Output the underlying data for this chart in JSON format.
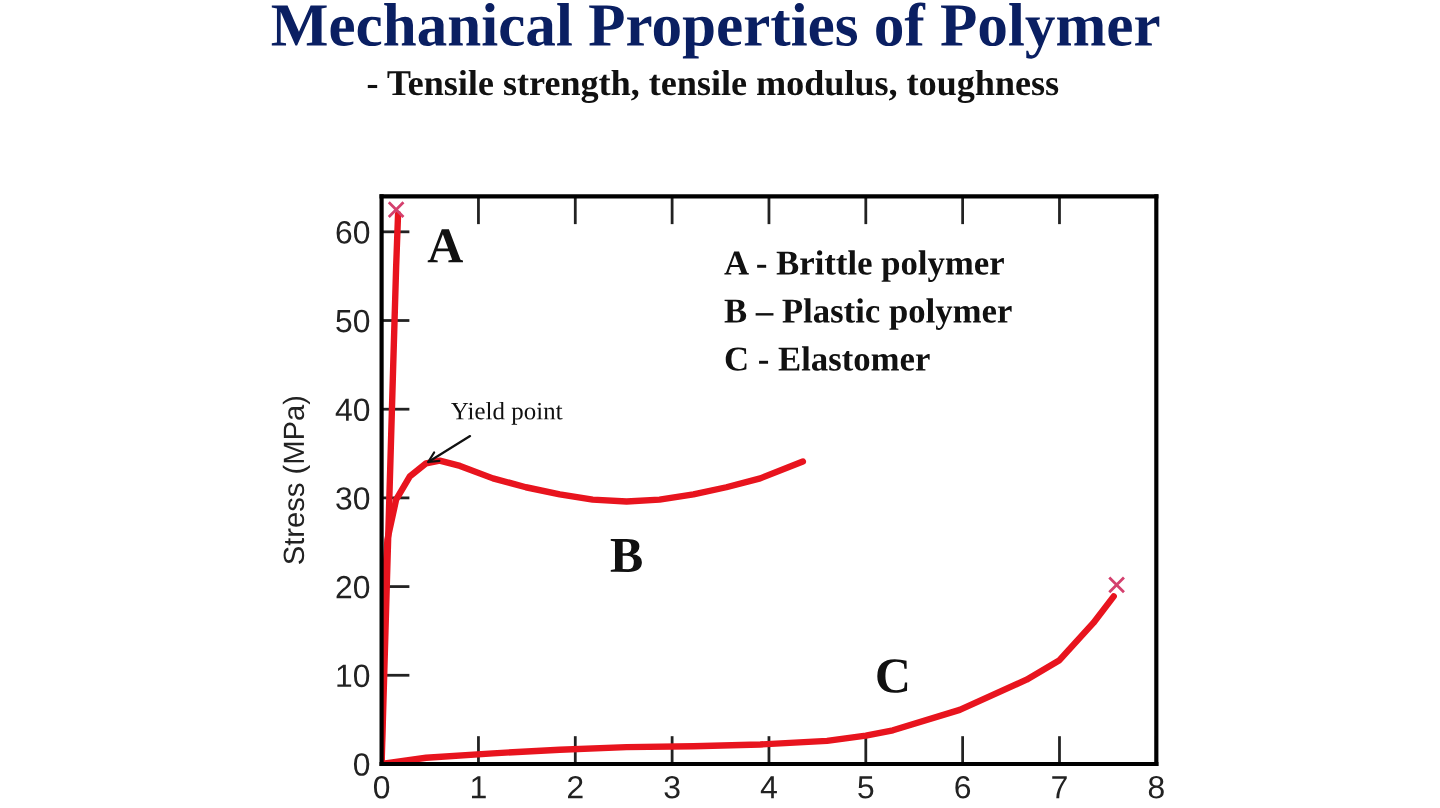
{
  "chart_data": {
    "type": "line",
    "title": "Mechanical Properties of Polymer",
    "subtitle": "- Tensile strength, tensile modulus, toughness",
    "ylabel": "Stress (MPa)",
    "xlim": [
      0,
      8
    ],
    "xticks": [
      0,
      1,
      2,
      3,
      4,
      5,
      6,
      7,
      8
    ],
    "ylim": [
      0,
      64
    ],
    "yticks": [
      0,
      10,
      20,
      30,
      40,
      50,
      60
    ],
    "series": [
      {
        "name": "A",
        "color": "#e8141e",
        "x": [
          0,
          0.04,
          0.08,
          0.12,
          0.15,
          0.17
        ],
        "values": [
          0,
          15,
          30,
          45,
          56,
          62
        ]
      },
      {
        "name": "B",
        "color": "#e8141e",
        "x": [
          0,
          0.01,
          0.03,
          0.06,
          0.15,
          0.29,
          0.46,
          0.6,
          0.81,
          1.15,
          1.49,
          1.84,
          2.18,
          2.53,
          2.87,
          3.22,
          3.56,
          3.91,
          4.35
        ],
        "values": [
          0,
          10,
          20,
          25.3,
          29.8,
          32.4,
          33.9,
          34.2,
          33.6,
          32.2,
          31.2,
          30.4,
          29.8,
          29.6,
          29.8,
          30.4,
          31.2,
          32.2,
          34.1
        ]
      },
      {
        "name": "C",
        "color": "#e8141e",
        "x": [
          0,
          0.46,
          1.15,
          1.84,
          2.53,
          3.22,
          3.91,
          4.6,
          5.0,
          5.28,
          5.97,
          6.66,
          7.0,
          7.35,
          7.56
        ],
        "values": [
          0,
          0.7,
          1.2,
          1.6,
          1.9,
          2.0,
          2.2,
          2.6,
          3.2,
          3.8,
          6.1,
          9.5,
          11.7,
          15.9,
          18.9
        ]
      },
      {
        "type": "scatter",
        "marker": "cross",
        "color": "#d4406e",
        "x": [
          0.15,
          7.59
        ],
        "values": [
          62.5,
          20.2
        ]
      }
    ],
    "annotations": [
      {
        "text": "Yield point",
        "x": 0.46,
        "y": 33.9
      },
      "A - Brittle polymer",
      "B – Plastic polymer",
      "C - Elastomer"
    ]
  }
}
